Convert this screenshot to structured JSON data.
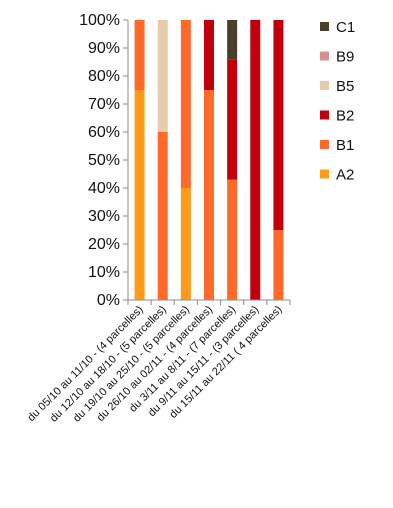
{
  "chart_data": {
    "type": "bar",
    "stacked": true,
    "percent": true,
    "categories": [
      "du 05/10 au 11/10 - (4 parcelles)",
      "du 12/10 au 18/10 - (5 parcelles)",
      "du 19/10 au 25/10 - (5 parcelles)",
      "du 26/10 au 02/11 - (4 parcelles)",
      "du 3/11 au 8/11 - (7 parcelles)",
      "du 9/11 au 15/11 - (3 parcelles)",
      "du 15/11 au 22/11 ( 4 parcelles)"
    ],
    "series": [
      {
        "name": "A2",
        "color": "#ff9a1a",
        "values": [
          75,
          0,
          40,
          0,
          0,
          0,
          0
        ]
      },
      {
        "name": "B1",
        "color": "#ff6a2a",
        "values": [
          25,
          60,
          60,
          75,
          43,
          0,
          25
        ]
      },
      {
        "name": "B5",
        "color": "#e6ccaa",
        "values": [
          0,
          40,
          0,
          0,
          0,
          0,
          0
        ]
      },
      {
        "name": "B2",
        "color": "#c0000c",
        "values": [
          0,
          0,
          0,
          25,
          43,
          100,
          75
        ]
      },
      {
        "name": "B9",
        "color": "#d89090",
        "values": [
          0,
          0,
          0,
          0,
          0,
          0,
          0
        ]
      },
      {
        "name": "C1",
        "color": "#4a3f2a",
        "values": [
          0,
          0,
          0,
          0,
          14,
          0,
          0
        ]
      }
    ],
    "legend_order": [
      "C1",
      "B9",
      "B5",
      "B2",
      "B1",
      "A2"
    ],
    "ylim": [
      0,
      100
    ],
    "yticks": [
      "0%",
      "10%",
      "20%",
      "30%",
      "40%",
      "50%",
      "60%",
      "70%",
      "80%",
      "90%",
      "100%"
    ],
    "grid": false,
    "legend_position": "right",
    "title": "",
    "xlabel": "",
    "ylabel": ""
  }
}
